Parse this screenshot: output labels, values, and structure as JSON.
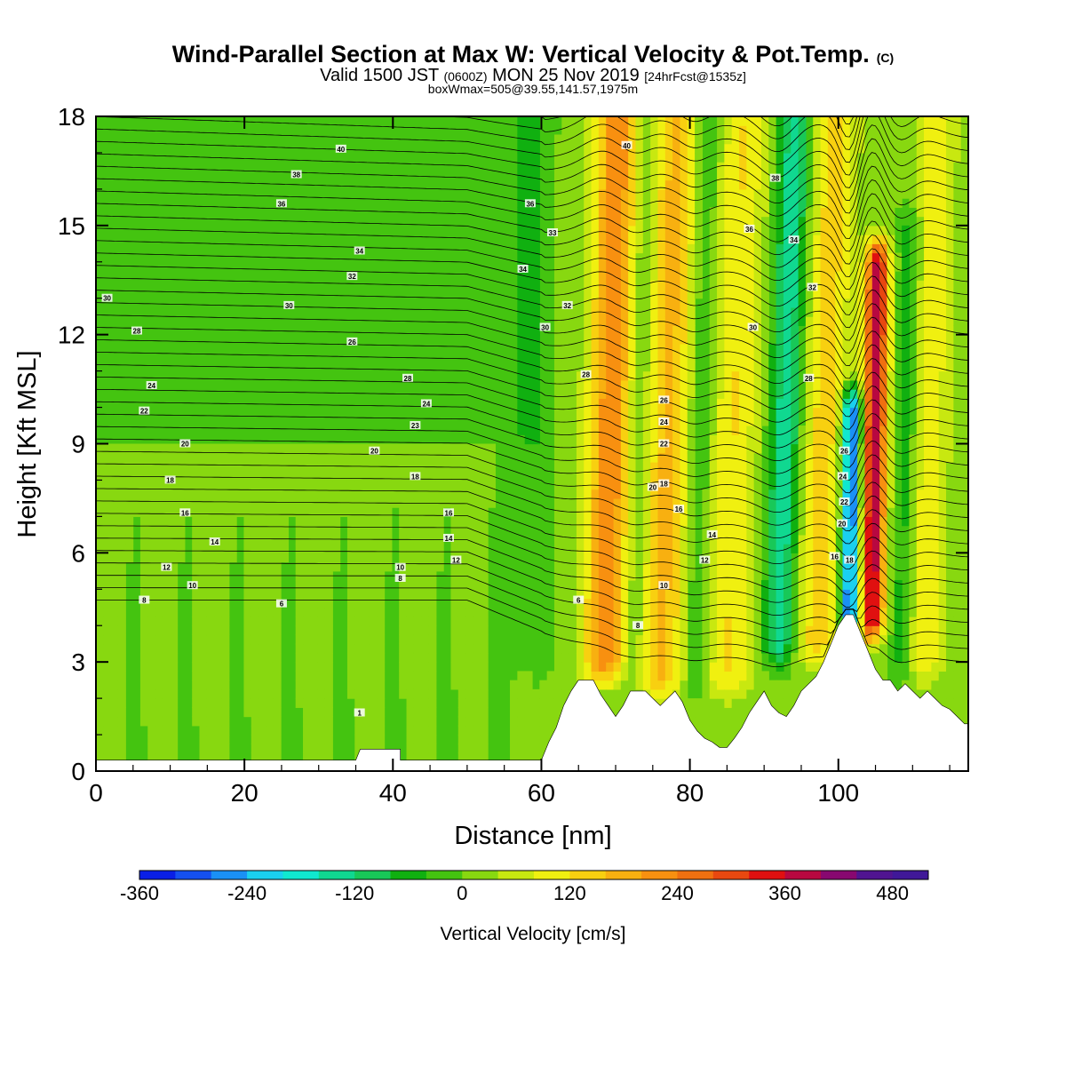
{
  "chart_data": {
    "type": "heatmap",
    "title": "Wind-Parallel Section at Max W: Vertical Velocity & Pot.Temp.",
    "title_mark": "(C)",
    "subtitle_parts": [
      "Valid 1500 JST",
      "(0600Z)",
      "MON 25 Nov 2019",
      "[24hrFcst@1535z]"
    ],
    "subtitle2": "boxWmax=505@39.55,141.57,1975m",
    "xlabel": "Distance [nm]",
    "ylabel": "Height [Kft MSL]",
    "xlim": [
      0,
      117.5
    ],
    "ylim": [
      0,
      18
    ],
    "xticks": [
      0,
      20,
      40,
      60,
      80,
      100
    ],
    "yticks": [
      0,
      3,
      6,
      9,
      12,
      15,
      18
    ],
    "colorbar": {
      "title": "Vertical Velocity [cm/s]",
      "min": -360,
      "max": 520,
      "step": 40,
      "tick_values": [
        -360,
        -240,
        -120,
        0,
        120,
        240,
        360,
        480
      ],
      "colors": [
        "#0a1fe6",
        "#1550f0",
        "#1a90f5",
        "#1ad0f0",
        "#10e8d0",
        "#10d890",
        "#18c858",
        "#10b010",
        "#44c410",
        "#88d810",
        "#c8e810",
        "#f0f010",
        "#f8d010",
        "#f8b010",
        "#f89010",
        "#f07010",
        "#e84810",
        "#e01010",
        "#b80840",
        "#880870",
        "#501490",
        "#401898"
      ]
    },
    "terrain": [
      [
        0,
        0.3
      ],
      [
        35,
        0.3
      ],
      [
        35.6,
        0.6
      ],
      [
        41,
        0.6
      ],
      [
        41,
        0.3
      ],
      [
        60,
        0.3
      ],
      [
        61,
        0.8
      ],
      [
        62,
        1.2
      ],
      [
        63,
        1.8
      ],
      [
        64,
        2.2
      ],
      [
        65,
        2.5
      ],
      [
        67,
        2.5
      ],
      [
        68,
        2.1
      ],
      [
        69,
        1.8
      ],
      [
        70,
        1.5
      ],
      [
        71,
        1.8
      ],
      [
        72,
        2.2
      ],
      [
        74,
        2.2
      ],
      [
        75,
        2.0
      ],
      [
        76,
        1.8
      ],
      [
        77,
        2.0
      ],
      [
        78,
        2.2
      ],
      [
        79,
        1.9
      ],
      [
        80,
        1.4
      ],
      [
        81,
        1.1
      ],
      [
        82,
        0.9
      ],
      [
        83,
        0.8
      ],
      [
        84,
        0.65
      ],
      [
        85,
        0.65
      ],
      [
        86,
        0.9
      ],
      [
        87,
        1.2
      ],
      [
        88,
        1.6
      ],
      [
        89,
        1.9
      ],
      [
        90,
        2.2
      ],
      [
        91,
        1.8
      ],
      [
        92,
        1.6
      ],
      [
        93,
        1.5
      ],
      [
        94,
        1.8
      ],
      [
        95,
        2.2
      ],
      [
        97,
        2.6
      ],
      [
        98,
        3.0
      ],
      [
        99,
        3.5
      ],
      [
        100,
        4.0
      ],
      [
        101,
        4.3
      ],
      [
        102,
        4.3
      ],
      [
        103,
        3.8
      ],
      [
        104,
        3.3
      ],
      [
        105,
        2.8
      ],
      [
        106,
        2.5
      ],
      [
        107,
        2.5
      ],
      [
        108,
        2.2
      ],
      [
        109,
        2.4
      ],
      [
        110,
        2.2
      ],
      [
        111,
        2.0
      ],
      [
        112,
        2.2
      ],
      [
        113,
        2.0
      ],
      [
        114,
        1.8
      ],
      [
        115,
        1.7
      ],
      [
        116,
        1.5
      ],
      [
        117,
        1.3
      ],
      [
        117.5,
        1.3
      ]
    ],
    "updrafts": [
      {
        "x": 68.5,
        "y0": 3.0,
        "y1": 18,
        "width": 3.0,
        "value": 220,
        "tilt": 0.12
      },
      {
        "x": 76.0,
        "y0": 2.6,
        "y1": 18,
        "width": 3.6,
        "value": 160,
        "tilt": 0.14
      },
      {
        "x": 85.0,
        "y0": 2.6,
        "y1": 18,
        "width": 3.2,
        "value": 110,
        "tilt": 0.15
      },
      {
        "x": 97.0,
        "y0": 3.5,
        "y1": 18,
        "width": 3.0,
        "value": 130,
        "tilt": 0.18
      },
      {
        "x": 104.5,
        "y0": 4.2,
        "y1": 14,
        "width": 1.6,
        "value": 380,
        "tilt": 0.08
      },
      {
        "x": 111.5,
        "y0": 3.0,
        "y1": 18,
        "width": 2.6,
        "value": 100,
        "tilt": 0.12
      }
    ],
    "downdrafts": [
      {
        "x": 72.5,
        "y0": 2.8,
        "y1": 18,
        "width": 1.8,
        "value": -80,
        "tilt": 0.12
      },
      {
        "x": 80.5,
        "y0": 2.6,
        "y1": 18,
        "width": 1.8,
        "value": -80,
        "tilt": 0.12
      },
      {
        "x": 92.0,
        "y0": 3.5,
        "y1": 18,
        "width": 2.2,
        "value": -160,
        "tilt": 0.15
      },
      {
        "x": 101.5,
        "y0": 4.3,
        "y1": 10,
        "width": 1.3,
        "value": -320,
        "tilt": 0.06
      },
      {
        "x": 108.5,
        "y0": 3.0,
        "y1": 15,
        "width": 1.6,
        "value": -80,
        "tilt": 0.1
      },
      {
        "x": 58.0,
        "y0": 3.0,
        "y1": 18,
        "width": 3.0,
        "value": -40,
        "tilt": 0.05
      }
    ],
    "isentropes": {
      "count": 46,
      "left_start": 4.7,
      "left_spacing": 0.33,
      "right_start": 3.0,
      "right_spacing": 0.36
    },
    "contour_labels": [
      {
        "text": "40",
        "x": 33.0,
        "y": 17.1
      },
      {
        "text": "38",
        "x": 27.0,
        "y": 16.4
      },
      {
        "text": "36",
        "x": 25.0,
        "y": 15.6
      },
      {
        "text": "34",
        "x": 35.5,
        "y": 14.3
      },
      {
        "text": "32",
        "x": 34.5,
        "y": 13.6
      },
      {
        "text": "30",
        "x": 1.5,
        "y": 13.0
      },
      {
        "text": "30",
        "x": 26.0,
        "y": 12.8
      },
      {
        "text": "28",
        "x": 5.5,
        "y": 12.1
      },
      {
        "text": "26",
        "x": 34.5,
        "y": 11.8
      },
      {
        "text": "24",
        "x": 7.5,
        "y": 10.6
      },
      {
        "text": "28",
        "x": 42.0,
        "y": 10.8
      },
      {
        "text": "22",
        "x": 6.5,
        "y": 9.9
      },
      {
        "text": "24",
        "x": 44.5,
        "y": 10.1
      },
      {
        "text": "23",
        "x": 43.0,
        "y": 9.5
      },
      {
        "text": "20",
        "x": 12.0,
        "y": 9.0
      },
      {
        "text": "20",
        "x": 37.5,
        "y": 8.8
      },
      {
        "text": "18",
        "x": 10.0,
        "y": 8.0
      },
      {
        "text": "18",
        "x": 43.0,
        "y": 8.1
      },
      {
        "text": "16",
        "x": 12.0,
        "y": 7.1
      },
      {
        "text": "16",
        "x": 47.5,
        "y": 7.1
      },
      {
        "text": "14",
        "x": 16.0,
        "y": 6.3
      },
      {
        "text": "14",
        "x": 47.5,
        "y": 6.4
      },
      {
        "text": "12",
        "x": 9.5,
        "y": 5.6
      },
      {
        "text": "12",
        "x": 48.5,
        "y": 5.8
      },
      {
        "text": "10",
        "x": 13.0,
        "y": 5.1
      },
      {
        "text": "10",
        "x": 41.0,
        "y": 5.6
      },
      {
        "text": "8",
        "x": 6.5,
        "y": 4.7
      },
      {
        "text": "8",
        "x": 41.0,
        "y": 5.3
      },
      {
        "text": "6",
        "x": 25.0,
        "y": 4.6
      },
      {
        "text": "6",
        "x": 65.0,
        "y": 4.7
      },
      {
        "text": "1",
        "x": 35.5,
        "y": 1.6
      },
      {
        "text": "40",
        "x": 71.5,
        "y": 17.2
      },
      {
        "text": "38",
        "x": 91.5,
        "y": 16.3
      },
      {
        "text": "36",
        "x": 58.5,
        "y": 15.6
      },
      {
        "text": "36",
        "x": 88.0,
        "y": 14.9
      },
      {
        "text": "34",
        "x": 94.0,
        "y": 14.6
      },
      {
        "text": "33",
        "x": 61.5,
        "y": 14.8
      },
      {
        "text": "34",
        "x": 57.5,
        "y": 13.8
      },
      {
        "text": "32",
        "x": 96.5,
        "y": 13.3
      },
      {
        "text": "32",
        "x": 63.5,
        "y": 12.8
      },
      {
        "text": "30",
        "x": 60.5,
        "y": 12.2
      },
      {
        "text": "30",
        "x": 88.5,
        "y": 12.2
      },
      {
        "text": "28",
        "x": 66.0,
        "y": 10.9
      },
      {
        "text": "28",
        "x": 96.0,
        "y": 10.8
      },
      {
        "text": "26",
        "x": 76.5,
        "y": 10.2
      },
      {
        "text": "24",
        "x": 76.5,
        "y": 9.6
      },
      {
        "text": "22",
        "x": 76.5,
        "y": 9.0
      },
      {
        "text": "20",
        "x": 75.0,
        "y": 7.8
      },
      {
        "text": "18",
        "x": 76.5,
        "y": 7.9
      },
      {
        "text": "16",
        "x": 78.5,
        "y": 7.2
      },
      {
        "text": "14",
        "x": 83.0,
        "y": 6.5
      },
      {
        "text": "12",
        "x": 82.0,
        "y": 5.8
      },
      {
        "text": "10",
        "x": 76.5,
        "y": 5.1
      },
      {
        "text": "8",
        "x": 73.0,
        "y": 4.0
      },
      {
        "text": "16",
        "x": 99.5,
        "y": 5.9
      },
      {
        "text": "18",
        "x": 101.5,
        "y": 5.8
      },
      {
        "text": "20",
        "x": 100.5,
        "y": 6.8
      },
      {
        "text": "22",
        "x": 100.8,
        "y": 7.4
      },
      {
        "text": "24",
        "x": 100.6,
        "y": 8.1
      },
      {
        "text": "26",
        "x": 100.8,
        "y": 8.8
      }
    ]
  }
}
